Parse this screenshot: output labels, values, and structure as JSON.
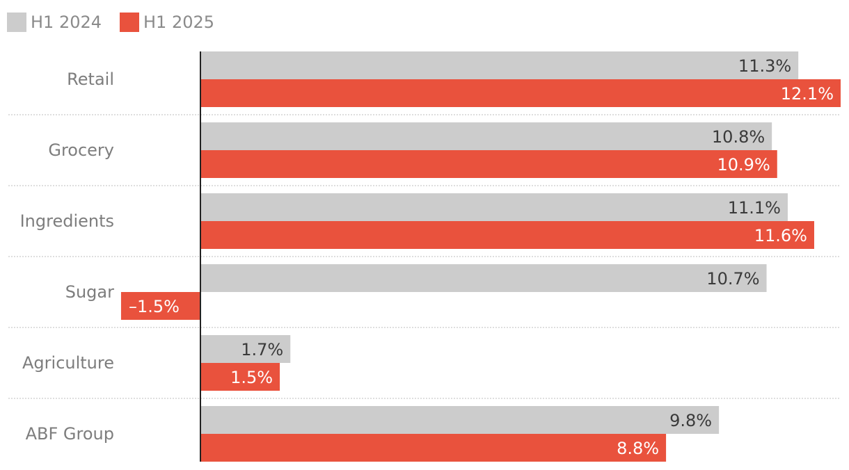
{
  "chart_data": {
    "type": "bar",
    "orientation": "horizontal",
    "categories": [
      "Retail",
      "Grocery",
      "Ingredients",
      "Sugar",
      "Agriculture",
      "ABF Group"
    ],
    "series": [
      {
        "name": "H1 2024",
        "color": "#cccccc",
        "values": [
          11.3,
          10.8,
          11.1,
          10.7,
          1.7,
          9.8
        ]
      },
      {
        "name": "H1 2025",
        "color": "#e9523d",
        "values": [
          12.1,
          10.9,
          11.6,
          -1.5,
          1.5,
          8.8
        ]
      }
    ],
    "data_labels": [
      [
        "11.3%",
        "10.8%",
        "11.1%",
        "10.7%",
        "1.7%",
        "9.8%"
      ],
      [
        "12.1%",
        "10.9%",
        "11.6%",
        "–1.5%",
        "1.5%",
        "8.8%"
      ]
    ],
    "xlim": [
      -1.5,
      12.1
    ],
    "legend": {
      "position": "top-left"
    },
    "grid": false
  }
}
